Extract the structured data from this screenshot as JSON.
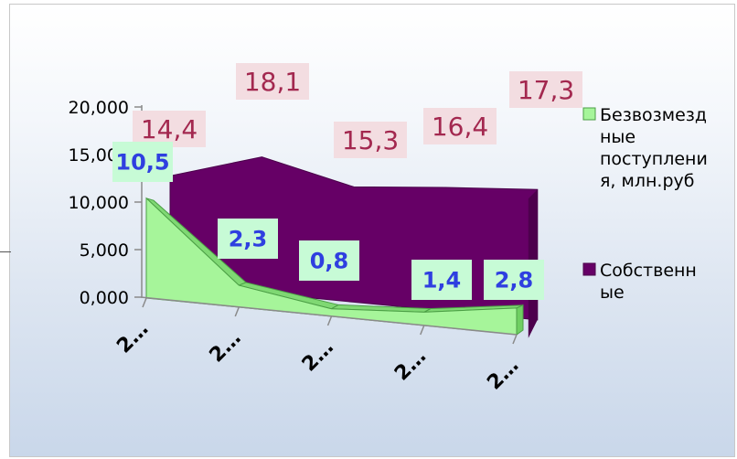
{
  "chart_data": {
    "type": "area",
    "categories": [
      "2…",
      "2…",
      "2…",
      "2…",
      "2…"
    ],
    "y_ticks": [
      "0,000",
      "5,000",
      "10,000",
      "15,000",
      "20,000"
    ],
    "ylim": [
      0,
      20000
    ],
    "series": [
      {
        "name": "Безвозмездные поступления, млн.руб",
        "values": [
          10.5,
          2.3,
          0.8,
          1.4,
          2.8
        ],
        "labels": [
          "10,5",
          "2,3",
          "0,8",
          "1,4",
          "2,8"
        ],
        "color": "#a6f59a"
      },
      {
        "name": "Собственные",
        "values": [
          14.4,
          18.1,
          15.3,
          16.4,
          17.3
        ],
        "labels": [
          "14,4",
          "18,1",
          "15,3",
          "16,4",
          "17,3"
        ],
        "color": "#660066"
      }
    ],
    "legend": {
      "placement": "right",
      "entries": [
        {
          "lines": [
            "Безвозмезд",
            "ные",
            "поступлени",
            "я, млн.руб"
          ],
          "color": "#a6f59a"
        },
        {
          "lines": [
            "Собственн",
            "ые"
          ],
          "color": "#660066"
        }
      ]
    }
  }
}
